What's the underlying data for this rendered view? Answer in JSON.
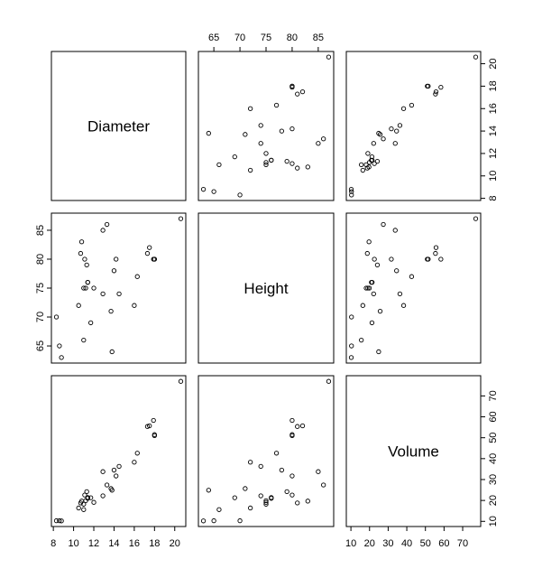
{
  "chart_data": {
    "type": "scatter",
    "variables": [
      "Diameter",
      "Height",
      "Volume"
    ],
    "ticks": {
      "Diameter": [
        8,
        10,
        12,
        14,
        16,
        18,
        20
      ],
      "Height": [
        65,
        70,
        75,
        80,
        85
      ],
      "Volume": [
        10,
        20,
        30,
        40,
        50,
        60,
        70
      ]
    },
    "ranges": {
      "Diameter": [
        8.3,
        20.6
      ],
      "Height": [
        63,
        87
      ],
      "Volume": [
        10.2,
        77.0
      ]
    },
    "axis_sides": {
      "Diameter": [
        "bottom",
        "right"
      ],
      "Height": [
        "top",
        "left"
      ],
      "Volume": [
        "bottom",
        "right"
      ]
    },
    "observations": [
      {
        "Diameter": 8.3,
        "Height": 70,
        "Volume": 10.3
      },
      {
        "Diameter": 8.6,
        "Height": 65,
        "Volume": 10.3
      },
      {
        "Diameter": 8.8,
        "Height": 63,
        "Volume": 10.2
      },
      {
        "Diameter": 10.5,
        "Height": 72,
        "Volume": 16.4
      },
      {
        "Diameter": 10.7,
        "Height": 81,
        "Volume": 18.8
      },
      {
        "Diameter": 10.8,
        "Height": 83,
        "Volume": 19.7
      },
      {
        "Diameter": 11.0,
        "Height": 66,
        "Volume": 15.6
      },
      {
        "Diameter": 11.0,
        "Height": 75,
        "Volume": 18.2
      },
      {
        "Diameter": 11.1,
        "Height": 80,
        "Volume": 22.6
      },
      {
        "Diameter": 11.2,
        "Height": 75,
        "Volume": 19.9
      },
      {
        "Diameter": 11.3,
        "Height": 79,
        "Volume": 24.2
      },
      {
        "Diameter": 11.4,
        "Height": 76,
        "Volume": 21.0
      },
      {
        "Diameter": 11.4,
        "Height": 76,
        "Volume": 21.4
      },
      {
        "Diameter": 11.7,
        "Height": 69,
        "Volume": 21.3
      },
      {
        "Diameter": 12.0,
        "Height": 75,
        "Volume": 19.1
      },
      {
        "Diameter": 12.9,
        "Height": 74,
        "Volume": 22.2
      },
      {
        "Diameter": 12.9,
        "Height": 85,
        "Volume": 33.8
      },
      {
        "Diameter": 13.3,
        "Height": 86,
        "Volume": 27.4
      },
      {
        "Diameter": 13.7,
        "Height": 71,
        "Volume": 25.7
      },
      {
        "Diameter": 13.8,
        "Height": 64,
        "Volume": 24.9
      },
      {
        "Diameter": 14.0,
        "Height": 78,
        "Volume": 34.5
      },
      {
        "Diameter": 14.2,
        "Height": 80,
        "Volume": 31.7
      },
      {
        "Diameter": 14.5,
        "Height": 74,
        "Volume": 36.3
      },
      {
        "Diameter": 16.0,
        "Height": 72,
        "Volume": 38.3
      },
      {
        "Diameter": 16.3,
        "Height": 77,
        "Volume": 42.6
      },
      {
        "Diameter": 17.3,
        "Height": 81,
        "Volume": 55.4
      },
      {
        "Diameter": 17.5,
        "Height": 82,
        "Volume": 55.7
      },
      {
        "Diameter": 17.9,
        "Height": 80,
        "Volume": 58.3
      },
      {
        "Diameter": 18.0,
        "Height": 80,
        "Volume": 51.5
      },
      {
        "Diameter": 18.0,
        "Height": 80,
        "Volume": 51.0
      },
      {
        "Diameter": 20.6,
        "Height": 87,
        "Volume": 77.0
      }
    ],
    "grid": false,
    "legend": "none"
  }
}
